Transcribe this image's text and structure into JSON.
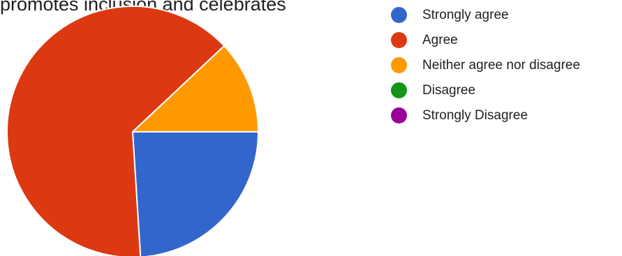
{
  "chart_data": {
    "type": "pie",
    "title": "promotes inclusion and celebrates",
    "categories": [
      "Strongly agree",
      "Agree",
      "Neither agree nor disagree",
      "Disagree",
      "Strongly Disagree"
    ],
    "values": [
      24,
      64,
      12,
      0,
      0
    ],
    "colors": [
      "#3366cc",
      "#dc3912",
      "#ff9900",
      "#109618",
      "#990099"
    ],
    "start_angle_deg": 90,
    "legend_position": "right",
    "legend_markers": "circle"
  }
}
